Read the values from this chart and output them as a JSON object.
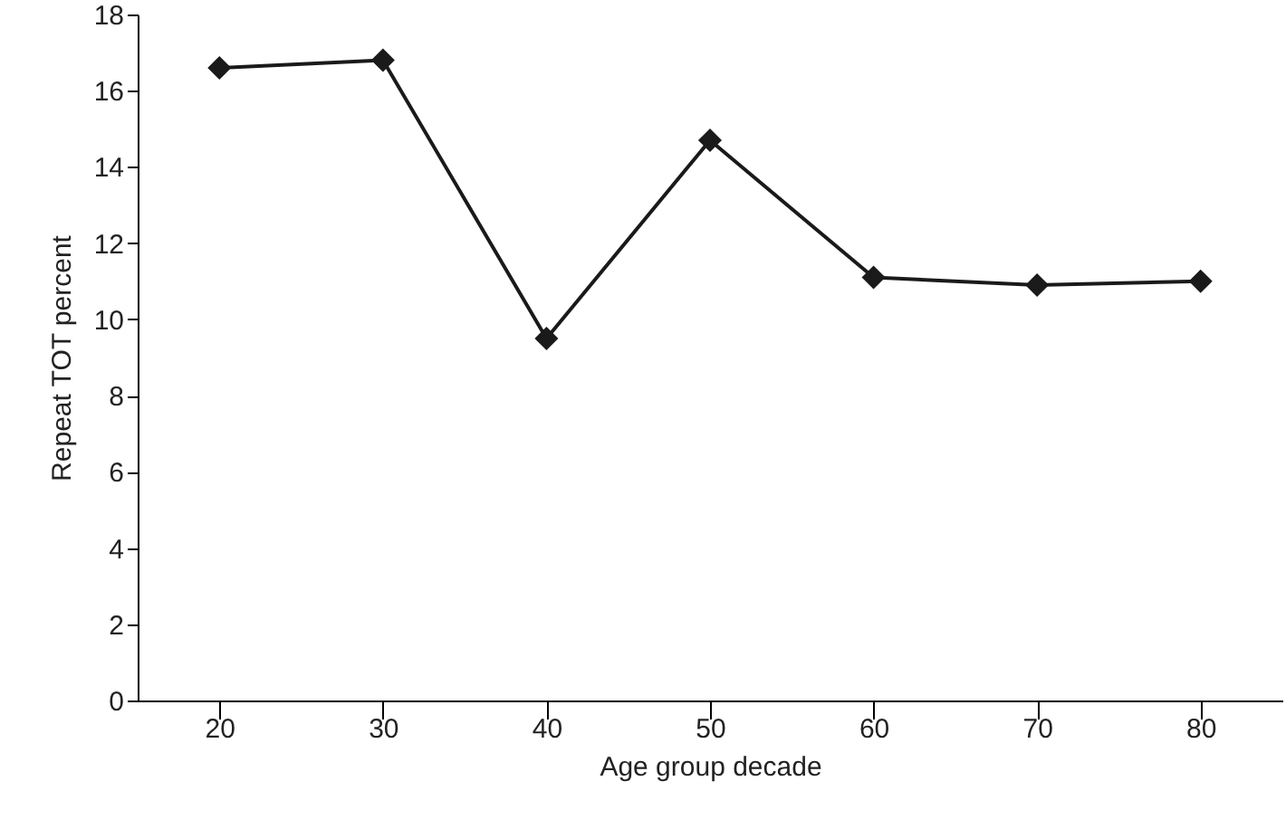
{
  "chart_data": {
    "type": "line",
    "xlabel": "Age group decade",
    "ylabel": "Repeat TOT percent",
    "categories": [
      "20",
      "30",
      "40",
      "50",
      "60",
      "70",
      "80"
    ],
    "series": [
      {
        "color": "#1a1a1a",
        "values": [
          16.6,
          16.8,
          9.5,
          14.7,
          11.1,
          10.9,
          11.0
        ]
      }
    ],
    "ylim": [
      0,
      18
    ],
    "yticks": [
      0,
      2,
      4,
      6,
      8,
      10,
      12,
      14,
      16,
      18
    ],
    "grid": false,
    "marker": "diamond",
    "line_style": "solid"
  }
}
